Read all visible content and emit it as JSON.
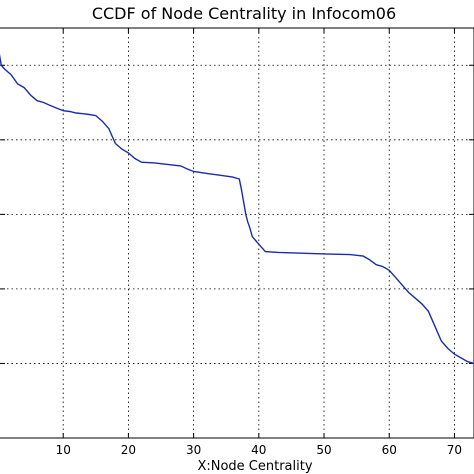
{
  "chart_data": {
    "type": "line",
    "title": "CCDF of Node Centrality in Infocom06",
    "xlabel": "X:Node Centrality",
    "ylabel": "",
    "xlim": [
      0,
      73
    ],
    "ylim": [
      0.0,
      1.1
    ],
    "x_ticks": [
      10,
      20,
      30,
      40,
      50,
      60,
      70
    ],
    "y_ticks": [
      0.2,
      0.4,
      0.6,
      0.8,
      1.0
    ],
    "grid": true,
    "line_color": "#1a2bb0",
    "series": [
      {
        "name": "",
        "points": [
          [
            0,
            1.05
          ],
          [
            0.5,
            1.0
          ],
          [
            1,
            0.99
          ],
          [
            2,
            0.975
          ],
          [
            3,
            0.95
          ],
          [
            4,
            0.94
          ],
          [
            5,
            0.92
          ],
          [
            6,
            0.905
          ],
          [
            7,
            0.9
          ],
          [
            8,
            0.892
          ],
          [
            9,
            0.885
          ],
          [
            10,
            0.878
          ],
          [
            11,
            0.876
          ],
          [
            12,
            0.872
          ],
          [
            13,
            0.87
          ],
          [
            14,
            0.868
          ],
          [
            15,
            0.865
          ],
          [
            16,
            0.85
          ],
          [
            17,
            0.83
          ],
          [
            17.5,
            0.81
          ],
          [
            18,
            0.79
          ],
          [
            19,
            0.775
          ],
          [
            20,
            0.765
          ],
          [
            21,
            0.75
          ],
          [
            22,
            0.74
          ],
          [
            24,
            0.738
          ],
          [
            26,
            0.734
          ],
          [
            28,
            0.73
          ],
          [
            29,
            0.722
          ],
          [
            30,
            0.715
          ],
          [
            32,
            0.71
          ],
          [
            34,
            0.705
          ],
          [
            36,
            0.7
          ],
          [
            37,
            0.695
          ],
          [
            37.3,
            0.67
          ],
          [
            37.6,
            0.64
          ],
          [
            38,
            0.6
          ],
          [
            38.3,
            0.58
          ],
          [
            38.6,
            0.565
          ],
          [
            39,
            0.54
          ],
          [
            39.5,
            0.53
          ],
          [
            40,
            0.52
          ],
          [
            41,
            0.5
          ],
          [
            43,
            0.498
          ],
          [
            46,
            0.496
          ],
          [
            50,
            0.494
          ],
          [
            54,
            0.492
          ],
          [
            56,
            0.488
          ],
          [
            57,
            0.478
          ],
          [
            58,
            0.465
          ],
          [
            59,
            0.46
          ],
          [
            60,
            0.45
          ],
          [
            61,
            0.43
          ],
          [
            62,
            0.41
          ],
          [
            63,
            0.39
          ],
          [
            64,
            0.375
          ],
          [
            65,
            0.36
          ],
          [
            66,
            0.34
          ],
          [
            67,
            0.3
          ],
          [
            67.5,
            0.28
          ],
          [
            68,
            0.26
          ],
          [
            69,
            0.24
          ],
          [
            70,
            0.225
          ],
          [
            71,
            0.215
          ],
          [
            72,
            0.205
          ],
          [
            73,
            0.2
          ]
        ]
      }
    ]
  }
}
